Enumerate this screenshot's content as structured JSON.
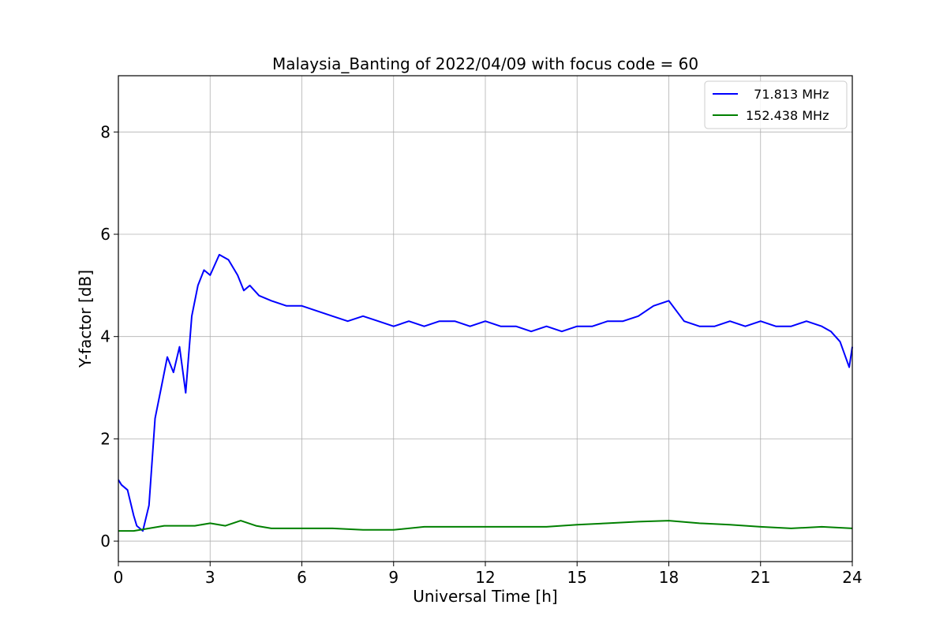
{
  "chart_data": {
    "type": "line",
    "title": "Malaysia_Banting of 2022/04/09 with focus code = 60",
    "xlabel": "Universal Time [h]",
    "ylabel": "Y-factor [dB]",
    "xlim": [
      0,
      24
    ],
    "ylim": [
      -0.4,
      9.1
    ],
    "xticks": [
      0,
      3,
      6,
      9,
      12,
      15,
      18,
      21,
      24
    ],
    "yticks": [
      0,
      2,
      4,
      6,
      8
    ],
    "grid": true,
    "legend": "top-right",
    "series": [
      {
        "name": "  71.813 MHz",
        "color": "#0000ff",
        "x": [
          0,
          0.1,
          0.3,
          0.5,
          0.6,
          0.8,
          1.0,
          1.2,
          1.4,
          1.6,
          1.8,
          2.0,
          2.2,
          2.4,
          2.6,
          2.8,
          3.0,
          3.3,
          3.6,
          3.9,
          4.1,
          4.3,
          4.6,
          5.0,
          5.5,
          6.0,
          6.5,
          7.0,
          7.5,
          8.0,
          8.5,
          9.0,
          9.5,
          10.0,
          10.5,
          11.0,
          11.5,
          12.0,
          12.5,
          13.0,
          13.5,
          14.0,
          14.5,
          15.0,
          15.5,
          16.0,
          16.5,
          17.0,
          17.5,
          18.0,
          18.5,
          19.0,
          19.5,
          20.0,
          20.5,
          21.0,
          21.5,
          22.0,
          22.5,
          23.0,
          23.3,
          23.6,
          23.9,
          24.0
        ],
        "y": [
          1.2,
          1.1,
          1.0,
          0.5,
          0.3,
          0.2,
          0.7,
          2.4,
          3.0,
          3.6,
          3.3,
          3.8,
          2.9,
          4.4,
          5.0,
          5.3,
          5.2,
          5.6,
          5.5,
          5.2,
          4.9,
          5.0,
          4.8,
          4.7,
          4.6,
          4.6,
          4.5,
          4.4,
          4.3,
          4.4,
          4.3,
          4.2,
          4.3,
          4.2,
          4.3,
          4.3,
          4.2,
          4.3,
          4.2,
          4.2,
          4.1,
          4.2,
          4.1,
          4.2,
          4.2,
          4.3,
          4.3,
          4.4,
          4.6,
          4.7,
          4.3,
          4.2,
          4.2,
          4.3,
          4.2,
          4.3,
          4.2,
          4.2,
          4.3,
          4.2,
          4.1,
          3.9,
          3.4,
          3.8
        ]
      },
      {
        "name": "152.438 MHz",
        "color": "#008000",
        "x": [
          0,
          0.5,
          1.0,
          1.5,
          2.0,
          2.5,
          3.0,
          3.5,
          4.0,
          4.5,
          5.0,
          6.0,
          7.0,
          8.0,
          9.0,
          10.0,
          11.0,
          12.0,
          13.0,
          14.0,
          15.0,
          16.0,
          17.0,
          18.0,
          19.0,
          20.0,
          21.0,
          22.0,
          23.0,
          24.0
        ],
        "y": [
          0.2,
          0.2,
          0.25,
          0.3,
          0.3,
          0.3,
          0.35,
          0.3,
          0.4,
          0.3,
          0.25,
          0.25,
          0.25,
          0.22,
          0.22,
          0.28,
          0.28,
          0.28,
          0.28,
          0.28,
          0.32,
          0.35,
          0.38,
          0.4,
          0.35,
          0.32,
          0.28,
          0.25,
          0.28,
          0.25
        ]
      }
    ]
  }
}
